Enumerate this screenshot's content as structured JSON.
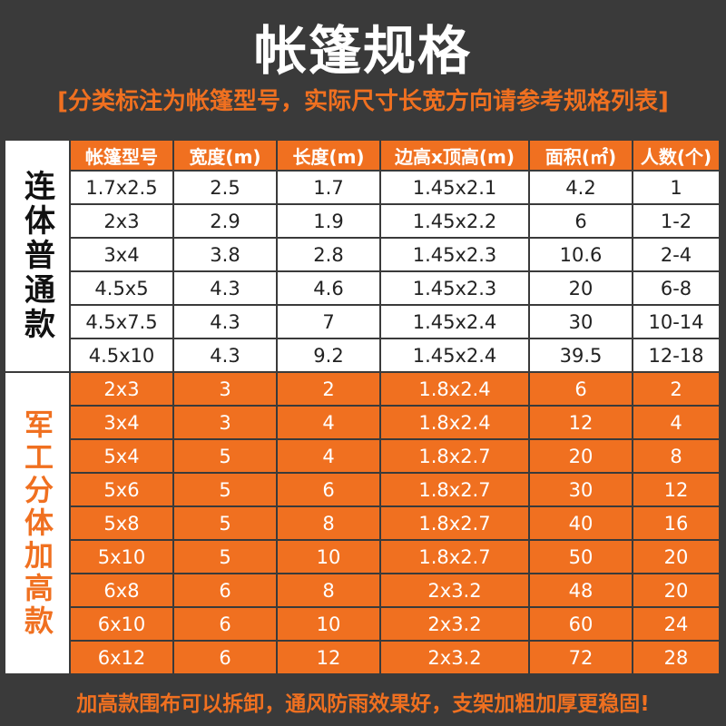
{
  "title": "帐篷规格",
  "subtitle": "[分类标注为帐篷型号，实际尺寸长宽方向请参考规格列表]",
  "headers": [
    "帐篷型号",
    "宽度(m)",
    "长度(m)",
    "边高x顶高(m)",
    "面积(㎡)",
    "人数(个)"
  ],
  "group1": {
    "label": "连体普通款",
    "rows": [
      [
        "1.7x2.5",
        "2.5",
        "1.7",
        "1.45x2.1",
        "4.2",
        "1"
      ],
      [
        "2x3",
        "2.9",
        "1.9",
        "1.45x2.2",
        "6",
        "1-2"
      ],
      [
        "3x4",
        "3.8",
        "2.8",
        "1.45x2.3",
        "10.6",
        "2-4"
      ],
      [
        "4.5x5",
        "4.3",
        "4.6",
        "1.45x2.3",
        "20",
        "6-8"
      ],
      [
        "4.5x7.5",
        "4.3",
        "7",
        "1.45x2.4",
        "30",
        "10-14"
      ],
      [
        "4.5x10",
        "4.3",
        "9.2",
        "1.45x2.4",
        "39.5",
        "12-18"
      ]
    ]
  },
  "group2": {
    "label": "军工分体加高款",
    "rows": [
      [
        "2x3",
        "3",
        "2",
        "1.8x2.4",
        "6",
        "2"
      ],
      [
        "3x4",
        "3",
        "4",
        "1.8x2.4",
        "12",
        "4"
      ],
      [
        "5x4",
        "5",
        "4",
        "1.8x2.7",
        "20",
        "8"
      ],
      [
        "5x6",
        "5",
        "6",
        "1.8x2.7",
        "30",
        "12"
      ],
      [
        "5x8",
        "5",
        "8",
        "1.8x2.7",
        "40",
        "16"
      ],
      [
        "5x10",
        "5",
        "10",
        "1.8x2.7",
        "50",
        "20"
      ],
      [
        "6x8",
        "6",
        "8",
        "2x3.2",
        "48",
        "20"
      ],
      [
        "6x10",
        "6",
        "10",
        "2x3.2",
        "60",
        "24"
      ],
      [
        "6x12",
        "6",
        "12",
        "2x3.2",
        "72",
        "28"
      ]
    ]
  },
  "footer": "加高款围布可以拆卸，通风防雨效果好，支架加粗加厚更稳固!",
  "colors": {
    "accent": "#f07020",
    "background": "#3a3a3a",
    "header_text": "#ffffff"
  }
}
